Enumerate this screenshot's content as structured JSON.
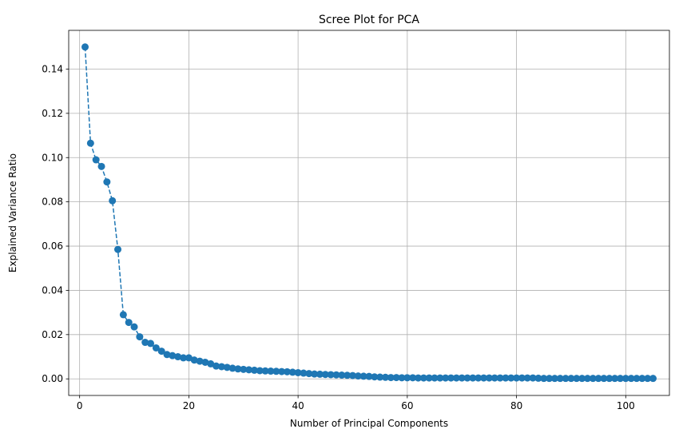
{
  "chart_data": {
    "type": "line",
    "title": "Scree Plot for PCA",
    "xlabel": "Number of Principal Components",
    "ylabel": "Explained Variance Ratio",
    "xlim": [
      -2,
      108
    ],
    "ylim": [
      -0.0075,
      0.1575
    ],
    "xticks": [
      0,
      20,
      40,
      60,
      80,
      100
    ],
    "yticks": [
      0.0,
      0.02,
      0.04,
      0.06,
      0.08,
      0.1,
      0.12,
      0.14
    ],
    "ytick_labels": [
      "0.00",
      "0.02",
      "0.04",
      "0.06",
      "0.08",
      "0.10",
      "0.12",
      "0.14"
    ],
    "grid": true,
    "marker": "circle",
    "line_style": "dashed",
    "color": "#1f77b4",
    "x": [
      1,
      2,
      3,
      4,
      5,
      6,
      7,
      8,
      9,
      10,
      11,
      12,
      13,
      14,
      15,
      16,
      17,
      18,
      19,
      20,
      21,
      22,
      23,
      24,
      25,
      26,
      27,
      28,
      29,
      30,
      31,
      32,
      33,
      34,
      35,
      36,
      37,
      38,
      39,
      40,
      41,
      42,
      43,
      44,
      45,
      46,
      47,
      48,
      49,
      50,
      51,
      52,
      53,
      54,
      55,
      56,
      57,
      58,
      59,
      60,
      61,
      62,
      63,
      64,
      65,
      66,
      67,
      68,
      69,
      70,
      71,
      72,
      73,
      74,
      75,
      76,
      77,
      78,
      79,
      80,
      81,
      82,
      83,
      84,
      85,
      86,
      87,
      88,
      89,
      90,
      91,
      92,
      93,
      94,
      95,
      96,
      97,
      98,
      99,
      100,
      101,
      102,
      103,
      104,
      105
    ],
    "y": [
      0.15,
      0.1065,
      0.099,
      0.096,
      0.089,
      0.0805,
      0.0585,
      0.029,
      0.0255,
      0.0235,
      0.019,
      0.0165,
      0.016,
      0.014,
      0.0125,
      0.011,
      0.0105,
      0.01,
      0.0095,
      0.0095,
      0.0085,
      0.008,
      0.0075,
      0.0068,
      0.0058,
      0.0055,
      0.0052,
      0.0048,
      0.0045,
      0.0043,
      0.0041,
      0.0039,
      0.0037,
      0.0036,
      0.0035,
      0.0034,
      0.0033,
      0.0032,
      0.003,
      0.0028,
      0.0026,
      0.0024,
      0.0022,
      0.0021,
      0.002,
      0.0019,
      0.0018,
      0.0017,
      0.0016,
      0.0015,
      0.0013,
      0.0012,
      0.0011,
      0.0009,
      0.0008,
      0.0007,
      0.0006,
      0.0006,
      0.0005,
      0.0005,
      0.0005,
      0.0004,
      0.0004,
      0.0004,
      0.0004,
      0.0004,
      0.0004,
      0.0004,
      0.0004,
      0.0004,
      0.0004,
      0.0004,
      0.0004,
      0.0004,
      0.0004,
      0.0004,
      0.0004,
      0.0004,
      0.0004,
      0.0004,
      0.0004,
      0.0004,
      0.0004,
      0.0003,
      0.0002,
      0.0002,
      0.0002,
      0.0002,
      0.0002,
      0.0002,
      0.0002,
      0.0002,
      0.0002,
      0.0002,
      0.0002,
      0.0002,
      0.0002,
      0.0002,
      0.0002,
      0.0002,
      0.0002,
      0.0002,
      0.0002,
      0.0002,
      0.0002
    ]
  }
}
